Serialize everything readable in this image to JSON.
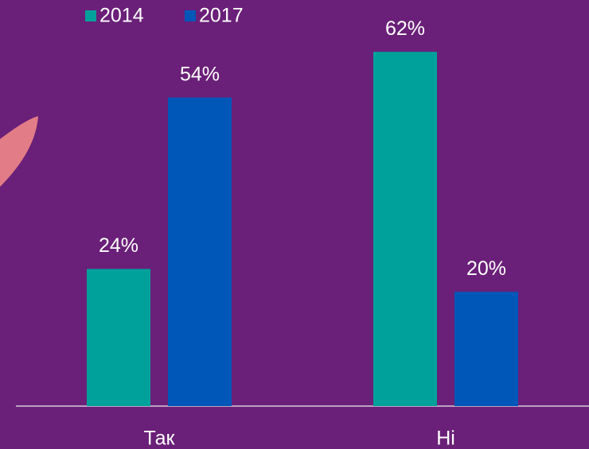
{
  "chart_data": {
    "type": "bar",
    "categories": [
      "Так",
      "Ні"
    ],
    "series": [
      {
        "name": "2014",
        "color": "#00a19a",
        "values": [
          24,
          62
        ],
        "value_labels": [
          "24%",
          "62%"
        ]
      },
      {
        "name": "2017",
        "color": "#0057b8",
        "values": [
          54,
          20
        ],
        "value_labels": [
          "54%",
          "20%"
        ]
      }
    ]
  }
}
